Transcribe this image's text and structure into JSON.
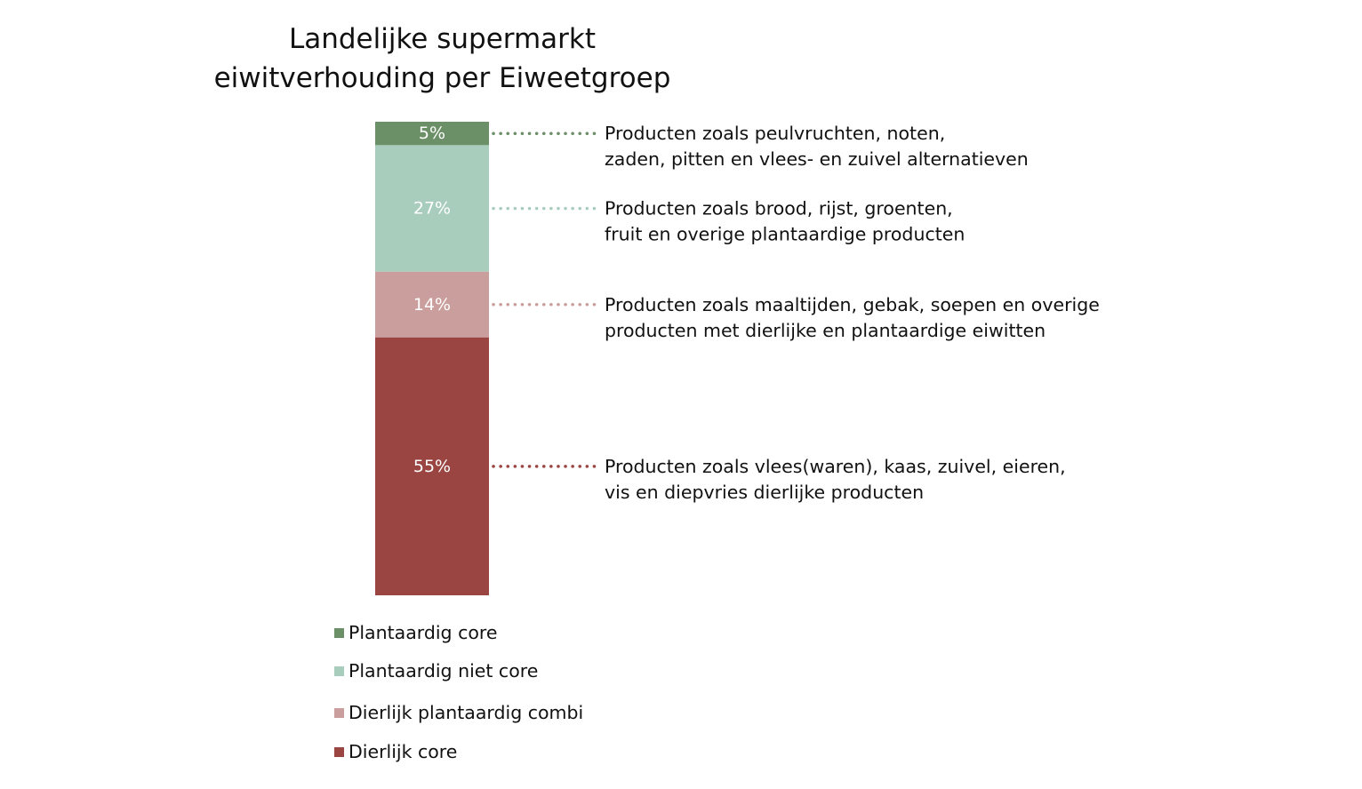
{
  "chart_data": {
    "type": "bar",
    "stacked": true,
    "title_lines": [
      "Landelijke supermarkt",
      "eiwitverhouding per Eiweetgroep"
    ],
    "xlabel": "",
    "ylabel": "",
    "ylim": [
      0,
      101
    ],
    "grid": false,
    "legend_position": "bottom-left",
    "series": [
      {
        "name": "Plantaardig core",
        "value": 5,
        "label": "5%",
        "color": "#6b8f66",
        "description": [
          "Producten zoals peulvruchten, noten,",
          "zaden, pitten en vlees- en zuivel alternatieven"
        ]
      },
      {
        "name": "Plantaardig niet core",
        "value": 27,
        "label": "27%",
        "color": "#a9cdbc",
        "description": [
          "Producten zoals brood, rijst, groenten,",
          "fruit en overige plantaardige producten"
        ]
      },
      {
        "name": "Dierlijk plantaardig combi",
        "value": 14,
        "label": "14%",
        "color": "#c99e9c",
        "description": [
          "Producten zoals maaltijden, gebak, soepen en overige",
          "producten met dierlijke en plantaardige eiwitten"
        ]
      },
      {
        "name": "Dierlijk core",
        "value": 55,
        "label": "55%",
        "color": "#9a4542",
        "description": [
          "Producten zoals vlees(waren), kaas, zuivel, eieren,",
          "vis en diepvries dierlijke producten"
        ]
      }
    ]
  }
}
